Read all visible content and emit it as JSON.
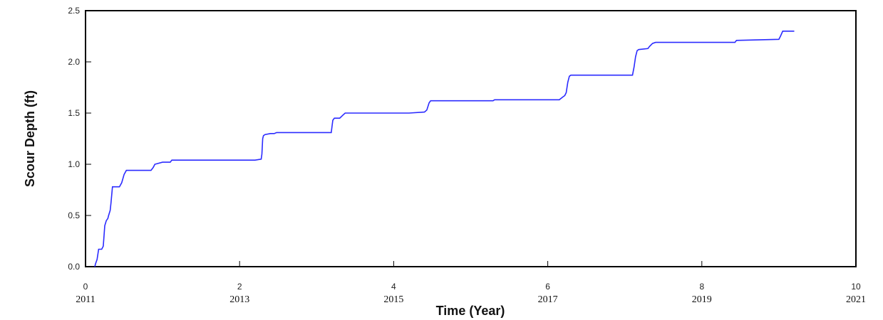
{
  "chart_data": {
    "type": "line",
    "title": "",
    "xlabel": "Time (Year)",
    "ylabel": "Scour Depth (ft)",
    "xlim": [
      0,
      10
    ],
    "ylim": [
      0,
      2.5
    ],
    "x_ticks": [
      "0",
      "2",
      "4",
      "6",
      "8",
      "10"
    ],
    "x_year_labels": [
      "2011",
      "2013",
      "2015",
      "2017",
      "2019",
      "2021"
    ],
    "y_ticks": [
      "0.0",
      "0.5",
      "1.0",
      "1.5",
      "2.0",
      "2.5"
    ],
    "grid": false,
    "line_color": "#2b2bff",
    "series": [
      {
        "x": [
          0.12,
          0.13,
          0.15,
          0.17,
          0.19,
          0.21,
          0.23,
          0.25,
          0.27,
          0.29,
          0.3,
          0.32,
          0.33,
          0.35,
          0.37,
          0.38,
          0.4,
          0.42,
          0.44,
          0.47,
          0.5,
          0.53,
          0.56,
          0.6,
          0.7,
          0.85,
          0.88,
          0.9,
          1.0,
          1.1,
          1.12,
          1.5,
          2.0,
          2.2,
          2.28,
          2.29,
          2.3,
          2.31,
          2.33,
          2.4,
          2.45,
          2.48,
          3.0,
          3.19,
          3.2,
          3.21,
          3.23,
          3.3,
          3.34,
          3.37,
          3.4,
          4.0,
          4.2,
          4.4,
          4.43,
          4.46,
          4.48,
          4.5,
          5.0,
          5.29,
          5.31,
          6.0,
          6.15,
          6.2,
          6.22,
          6.24,
          6.26,
          6.28,
          6.3,
          7.0,
          7.1,
          7.12,
          7.14,
          7.16,
          7.18,
          7.3,
          7.32,
          7.36,
          7.4,
          7.9,
          8.43,
          8.45,
          9.0,
          9.02,
          9.05,
          9.2
        ],
        "y": [
          0.0,
          0.03,
          0.07,
          0.17,
          0.17,
          0.17,
          0.2,
          0.4,
          0.45,
          0.47,
          0.5,
          0.55,
          0.62,
          0.78,
          0.78,
          0.78,
          0.78,
          0.78,
          0.78,
          0.82,
          0.9,
          0.94,
          0.94,
          0.94,
          0.94,
          0.94,
          0.97,
          1.0,
          1.02,
          1.02,
          1.04,
          1.04,
          1.04,
          1.04,
          1.05,
          1.1,
          1.25,
          1.28,
          1.29,
          1.3,
          1.3,
          1.31,
          1.31,
          1.31,
          1.37,
          1.43,
          1.45,
          1.45,
          1.48,
          1.5,
          1.5,
          1.5,
          1.5,
          1.51,
          1.53,
          1.6,
          1.62,
          1.62,
          1.62,
          1.62,
          1.63,
          1.63,
          1.63,
          1.66,
          1.67,
          1.7,
          1.8,
          1.86,
          1.87,
          1.87,
          1.87,
          1.95,
          2.05,
          2.11,
          2.12,
          2.13,
          2.15,
          2.18,
          2.19,
          2.19,
          2.19,
          2.21,
          2.22,
          2.25,
          2.3,
          2.3
        ]
      }
    ]
  }
}
